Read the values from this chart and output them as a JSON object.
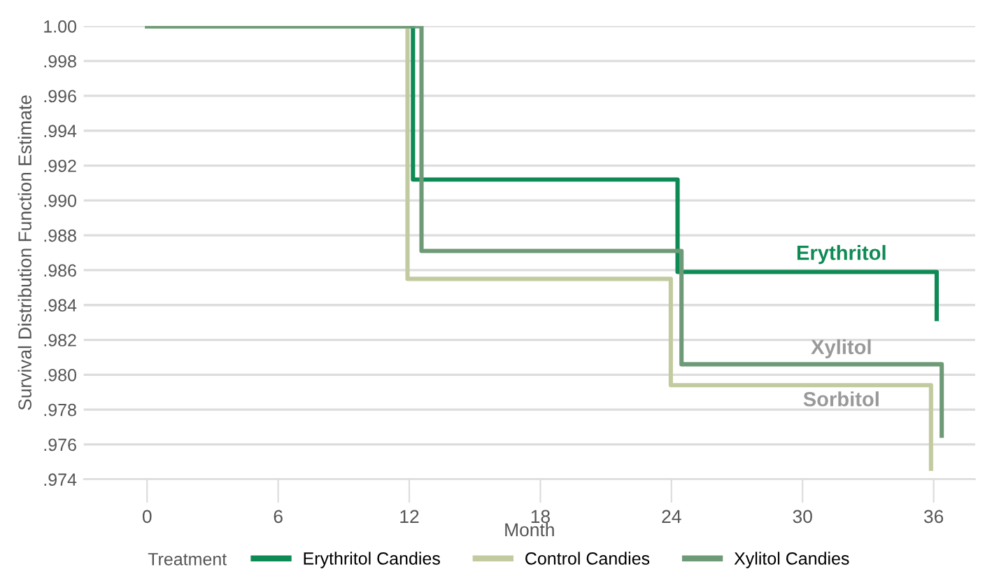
{
  "chart_data": {
    "type": "step",
    "xlabel": "Month",
    "ylabel": "Survival Distribution Function Estimate",
    "legend_title": "Treatment",
    "series": [
      {
        "name": "Erythritol Candies",
        "color": "#0e8a55",
        "x": [
          0,
          12.17,
          24.28,
          36.14
        ],
        "values": [
          1.0,
          0.9912,
          0.9859,
          0.9832
        ]
      },
      {
        "name": "Control Candies",
        "color": "#c2cba0",
        "x": [
          0,
          11.92,
          23.97,
          35.88
        ],
        "values": [
          1.0,
          0.9855,
          0.9794,
          0.9746
        ]
      },
      {
        "name": "Xylitol Candies",
        "color": "#6f9a78",
        "x": [
          0,
          12.56,
          24.46,
          36.37
        ],
        "values": [
          1.0,
          0.9871,
          0.9806,
          0.9765
        ]
      }
    ],
    "annotations": [
      "Erythritol",
      "Xylitol",
      "Sorbitol"
    ],
    "xlim": [
      -2.9,
      37.9
    ],
    "ylim": [
      0.974,
      1.0
    ],
    "xticks": [
      0,
      6,
      12,
      18,
      24,
      30,
      36
    ],
    "yticks": [
      {
        "value": 1.0,
        "label": "1.00"
      },
      {
        "value": 0.998,
        "label": ".998"
      },
      {
        "value": 0.996,
        "label": ".996"
      },
      {
        "value": 0.994,
        "label": ".994"
      },
      {
        "value": 0.992,
        "label": ".992"
      },
      {
        "value": 0.99,
        "label": ".990"
      },
      {
        "value": 0.988,
        "label": ".988"
      },
      {
        "value": 0.986,
        "label": ".986"
      },
      {
        "value": 0.984,
        "label": ".984"
      },
      {
        "value": 0.982,
        "label": ".982"
      },
      {
        "value": 0.98,
        "label": ".980"
      },
      {
        "value": 0.978,
        "label": ".978"
      },
      {
        "value": 0.976,
        "label": ".976"
      },
      {
        "value": 0.974,
        "label": ".974"
      }
    ],
    "grid": "y",
    "legend": "bottom",
    "line_style": "solid",
    "marker": "none"
  }
}
